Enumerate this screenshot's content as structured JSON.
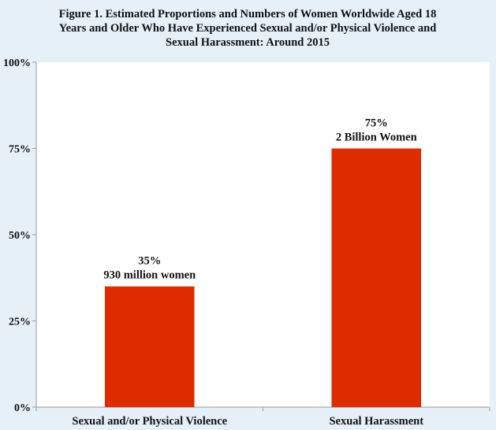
{
  "chart_data": {
    "type": "bar",
    "title_lines": [
      "Figure 1. Estimated Proportions and Numbers of Women Worldwide Aged 18",
      "Years and Older Who Have Experienced Sexual and/or Physical Violence and",
      "Sexual Harassment: Around 2015"
    ],
    "categories": [
      "Sexual and/or Physical Violence",
      "Sexual Harassment"
    ],
    "values": [
      35,
      75
    ],
    "data_labels": [
      [
        "35%",
        "930 million women"
      ],
      [
        "75%",
        "2 Billion Women"
      ]
    ],
    "y_ticks": [
      0,
      25,
      50,
      75,
      100
    ],
    "y_tick_labels": [
      "0%",
      "25%",
      "50%",
      "75%",
      "100%"
    ],
    "ylim": [
      0,
      100
    ],
    "xlabel": "",
    "ylabel": "",
    "grid": false,
    "bar_color": "#dd2c00",
    "plot_background": "#ffffff",
    "page_background": "#e6f0f8"
  }
}
